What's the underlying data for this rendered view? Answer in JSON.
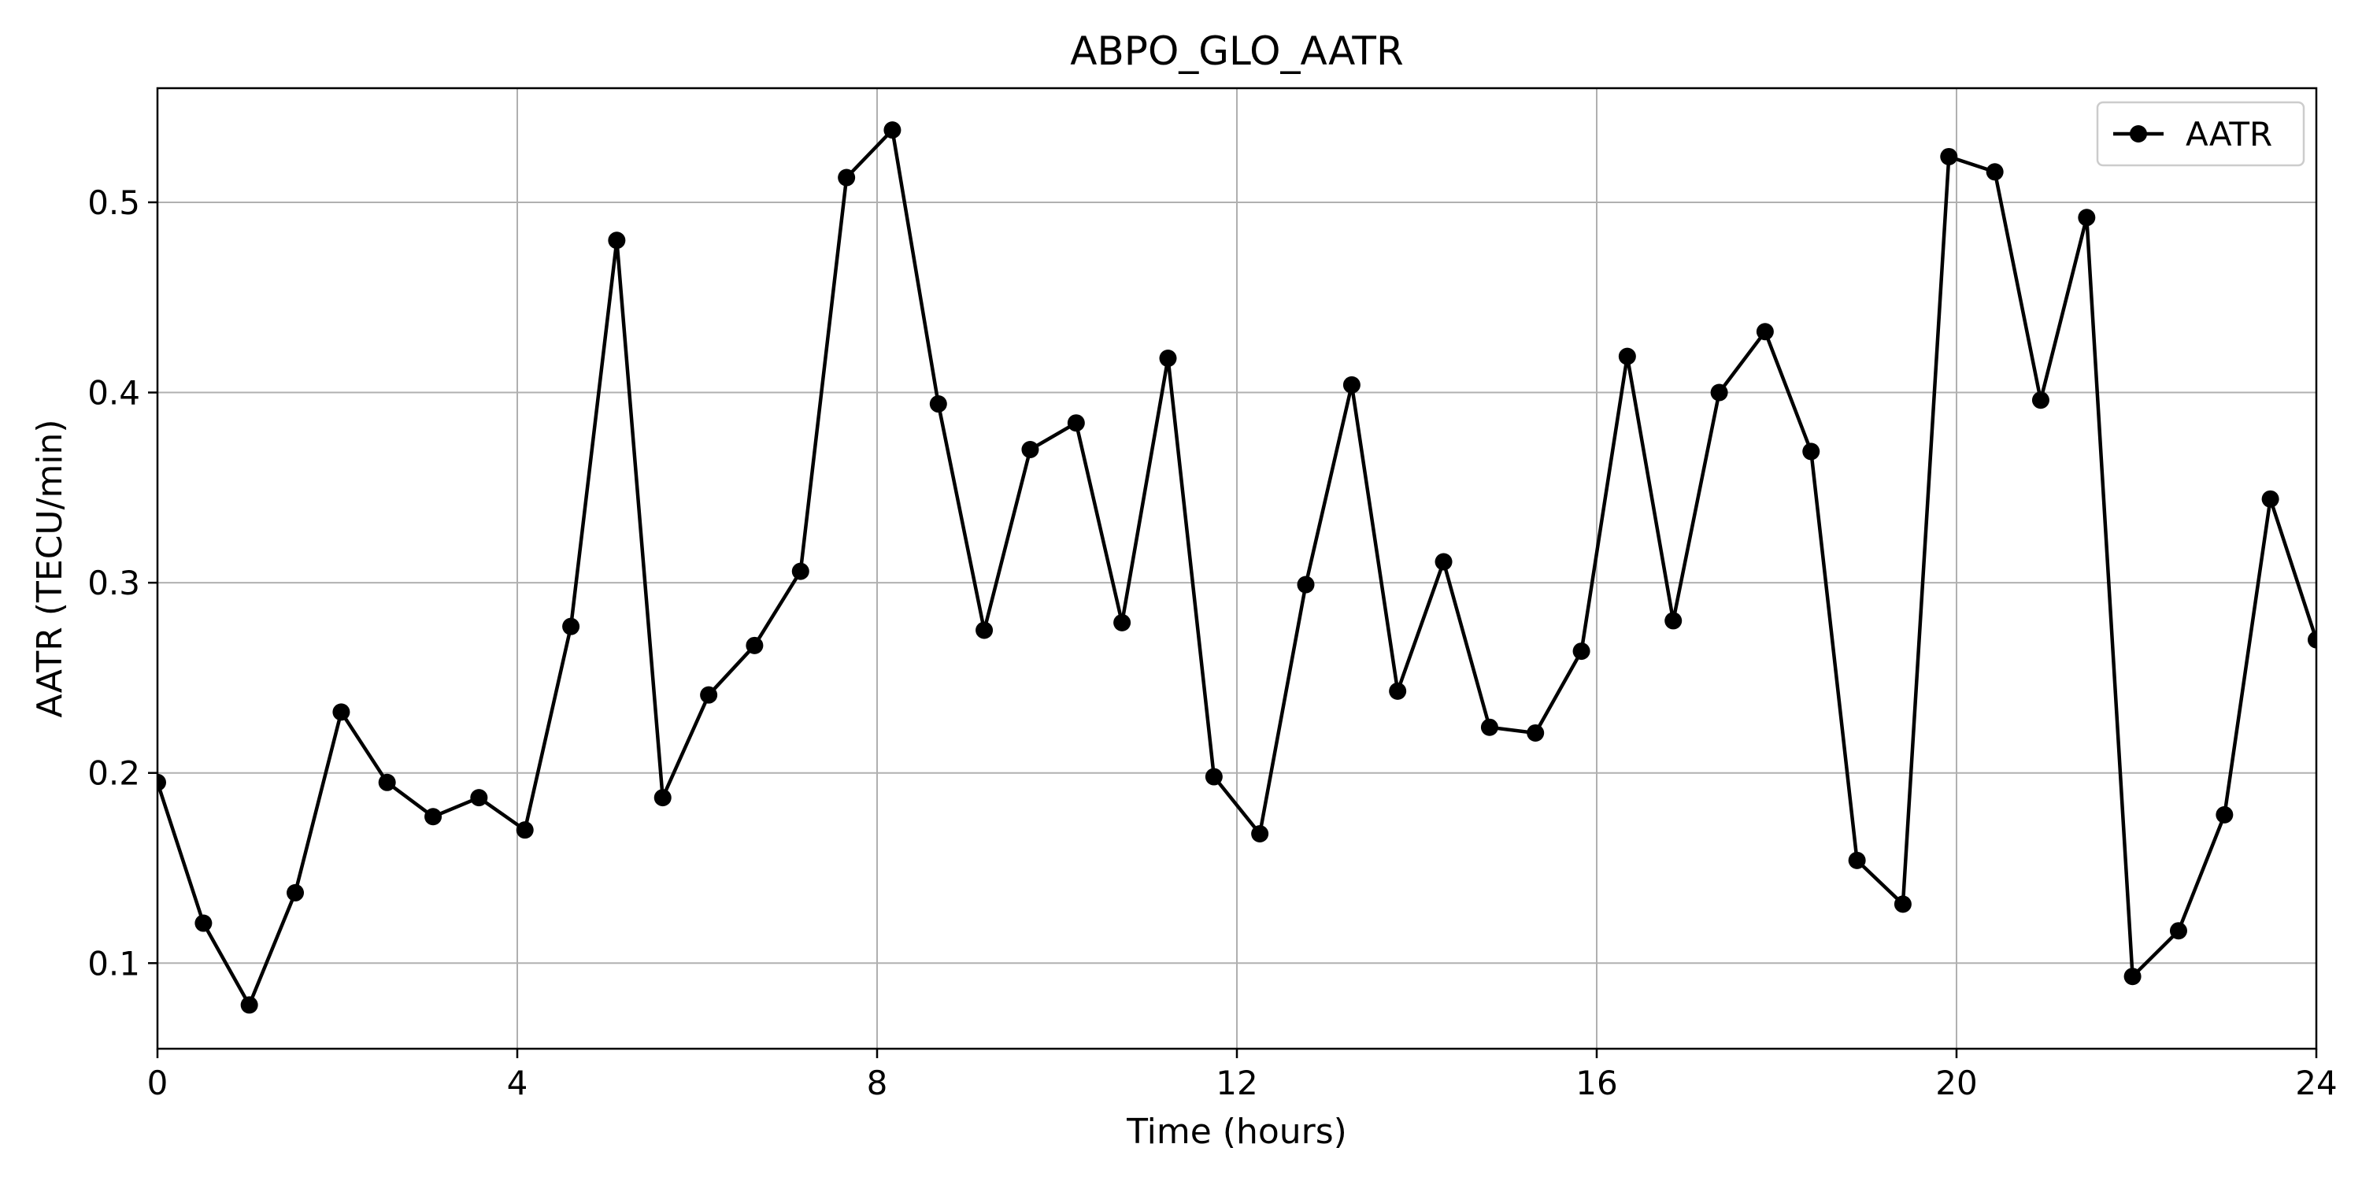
{
  "chart_data": {
    "type": "line",
    "title": "ABPO_GLO_AATR",
    "xlabel": "Time (hours)",
    "ylabel": "AATR (TECU/min)",
    "xlim": [
      0,
      24
    ],
    "ylim": [
      0.055,
      0.56
    ],
    "xticks": [
      0,
      4,
      8,
      12,
      16,
      20,
      24
    ],
    "xtick_labels": [
      "0",
      "4",
      "8",
      "12",
      "16",
      "20",
      "24"
    ],
    "yticks": [
      0.1,
      0.2,
      0.3,
      0.4,
      0.5
    ],
    "ytick_labels": [
      "0.1",
      "0.2",
      "0.3",
      "0.4",
      "0.5"
    ],
    "grid": true,
    "legend_position": "top-right",
    "series": [
      {
        "name": "AATR",
        "color": "#000000",
        "marker": "circle",
        "x": [
          0,
          0.511,
          1.021,
          1.532,
          2.043,
          2.553,
          3.064,
          3.574,
          4.085,
          4.596,
          5.106,
          5.617,
          6.128,
          6.638,
          7.149,
          7.66,
          8.17,
          8.681,
          9.191,
          9.702,
          10.213,
          10.723,
          11.234,
          11.745,
          12.255,
          12.766,
          13.277,
          13.787,
          14.298,
          14.809,
          15.319,
          15.83,
          16.34,
          16.851,
          17.362,
          17.872,
          18.383,
          18.894,
          19.404,
          19.915,
          20.426,
          20.936,
          21.447,
          21.957,
          22.468,
          22.979,
          23.489,
          24.0
        ],
        "y": [
          0.195,
          0.121,
          0.078,
          0.137,
          0.232,
          0.195,
          0.177,
          0.187,
          0.17,
          0.277,
          0.48,
          0.187,
          0.241,
          0.267,
          0.306,
          0.513,
          0.538,
          0.394,
          0.275,
          0.37,
          0.384,
          0.279,
          0.418,
          0.198,
          0.168,
          0.299,
          0.404,
          0.243,
          0.311,
          0.224,
          0.221,
          0.264,
          0.419,
          0.28,
          0.4,
          0.432,
          0.369,
          0.154,
          0.131,
          0.524,
          0.516,
          0.396,
          0.492,
          0.093,
          0.117,
          0.178,
          0.344,
          0.27
        ]
      }
    ]
  }
}
